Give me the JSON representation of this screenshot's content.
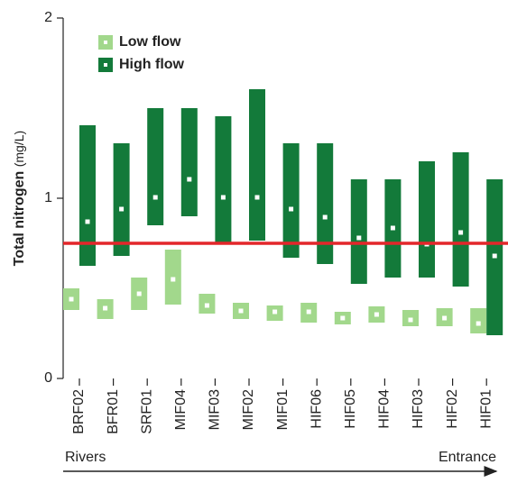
{
  "chart_data": {
    "type": "range",
    "y_label": "Total nitrogen",
    "y_unit": "(mg/L)",
    "categories": [
      "BRF02",
      "BFR01",
      "SRF01",
      "MIF04",
      "MIF03",
      "MIF02",
      "MIF01",
      "HIF06",
      "HIF05",
      "HIF04",
      "HIF03",
      "HIF02",
      "HIF01"
    ],
    "series": [
      {
        "name": "Low flow",
        "color": "#a2d88c",
        "low": [
          0.38,
          0.33,
          0.38,
          0.41,
          0.36,
          0.33,
          0.32,
          0.31,
          0.3,
          0.31,
          0.29,
          0.29,
          0.25
        ],
        "high": [
          0.5,
          0.44,
          0.56,
          0.715,
          0.47,
          0.42,
          0.405,
          0.42,
          0.37,
          0.4,
          0.38,
          0.39,
          0.39
        ],
        "mean": [
          0.44,
          0.39,
          0.47,
          0.55,
          0.405,
          0.375,
          0.37,
          0.37,
          0.335,
          0.355,
          0.325,
          0.335,
          0.305
        ]
      },
      {
        "name": "High flow",
        "color": "#137a3a",
        "low": [
          0.625,
          0.68,
          0.85,
          0.9,
          0.75,
          0.765,
          0.67,
          0.635,
          0.525,
          0.56,
          0.56,
          0.51,
          0.24
        ],
        "high": [
          1.405,
          1.305,
          1.5,
          1.5,
          1.455,
          1.605,
          1.305,
          1.305,
          1.105,
          1.105,
          1.205,
          1.255,
          1.105
        ],
        "mean": [
          0.87,
          0.94,
          1.005,
          1.105,
          1.005,
          1.005,
          0.94,
          0.895,
          0.78,
          0.835,
          0.745,
          0.81,
          0.68
        ]
      }
    ],
    "reference_line": {
      "value": 0.75,
      "color": "#e3262a"
    },
    "ylim": [
      0,
      2
    ],
    "yticks": [
      0,
      1,
      2
    ],
    "x_start_label": "Rivers",
    "x_end_label": "Entrance"
  }
}
